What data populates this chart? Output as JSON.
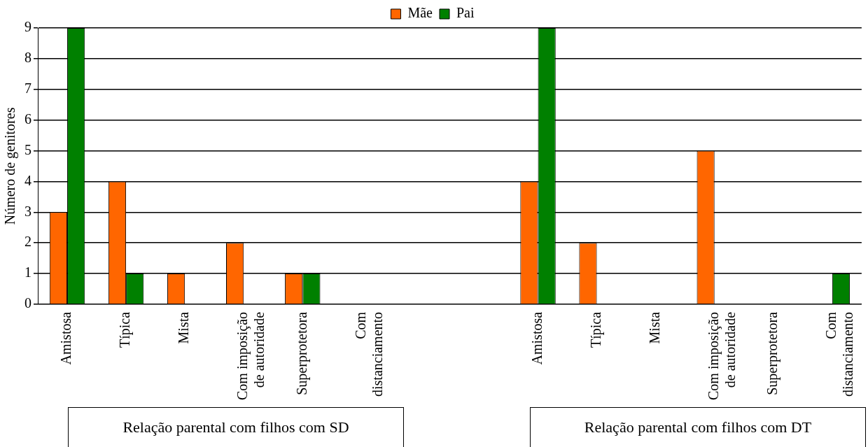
{
  "chart_data": {
    "type": "bar",
    "ylabel": "Número de genitores",
    "categories": [
      "Amistosa",
      "Típica",
      "Mista",
      "Com imposição de autoridade",
      "Superprotetora",
      "Com distanciamento",
      null,
      null,
      "Amistosa",
      "Típica",
      "Mista",
      "Com imposição de autoridade",
      "Superprotetora",
      "Com distanciamento"
    ],
    "series": [
      {
        "name": "Mãe",
        "color": "#ff6600",
        "values": [
          3,
          4,
          1,
          2,
          1,
          0,
          null,
          null,
          4,
          2,
          0,
          5,
          0,
          0
        ]
      },
      {
        "name": "Pai",
        "color": "#008000",
        "values": [
          9,
          1,
          0,
          0,
          1,
          0,
          null,
          null,
          9,
          0,
          0,
          0,
          0,
          1
        ]
      }
    ],
    "ylim": [
      0,
      9
    ],
    "yticks": [
      0,
      1,
      2,
      3,
      4,
      5,
      6,
      7,
      8,
      9
    ],
    "grid": "y",
    "legend": "top",
    "annotations": [
      "Relação parental com filhos com SD",
      "Relação parental com filhos com DT"
    ]
  }
}
